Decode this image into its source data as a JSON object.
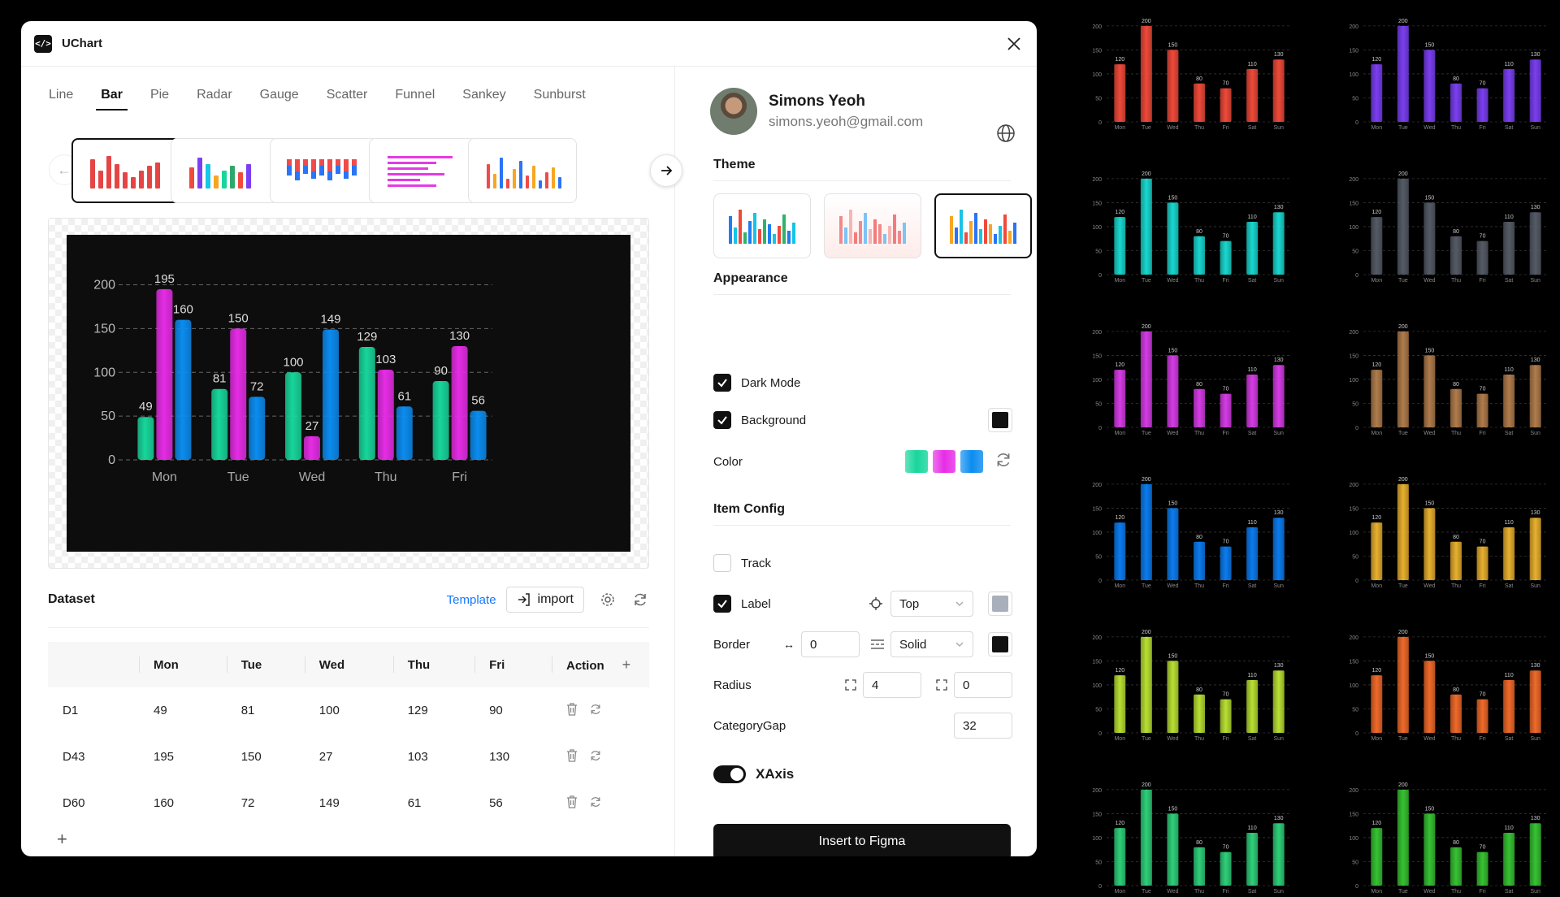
{
  "app": {
    "title": "UChart"
  },
  "tabs": [
    "Line",
    "Bar",
    "Pie",
    "Radar",
    "Gauge",
    "Scatter",
    "Funnel",
    "Sankey",
    "Sunburst"
  ],
  "active_tab": "Bar",
  "chart_data": {
    "type": "bar",
    "categories": [
      "Mon",
      "Tue",
      "Wed",
      "Thu",
      "Fri"
    ],
    "series": [
      {
        "name": "D1",
        "values": [
          49,
          81,
          100,
          129,
          90
        ],
        "color": "#17d69b"
      },
      {
        "name": "D43",
        "values": [
          195,
          150,
          27,
          103,
          130
        ],
        "color": "#e62ce6"
      },
      {
        "name": "D60",
        "values": [
          160,
          72,
          149,
          61,
          56
        ],
        "color": "#0b8cf0"
      }
    ],
    "yticks": [
      0,
      50,
      100,
      150,
      200
    ],
    "ylim": [
      0,
      220
    ],
    "grid": true,
    "labels": "top",
    "background": "#0d0d0d"
  },
  "dataset": {
    "title": "Dataset",
    "template_label": "Template",
    "import_label": "import",
    "columns": [
      "",
      "Mon",
      "Tue",
      "Wed",
      "Thu",
      "Fri",
      "Action"
    ],
    "rows": [
      {
        "name": "D1",
        "values": [
          "49",
          "81",
          "100",
          "129",
          "90"
        ]
      },
      {
        "name": "D43",
        "values": [
          "195",
          "150",
          "27",
          "103",
          "130"
        ]
      },
      {
        "name": "D60",
        "values": [
          "160",
          "72",
          "149",
          "61",
          "56"
        ]
      }
    ]
  },
  "profile": {
    "name": "Simons Yeoh",
    "email": "simons.yeoh@gmail.com"
  },
  "theme": {
    "title": "Theme"
  },
  "appearance": {
    "title": "Appearance",
    "dark_mode": "Dark Mode",
    "background": "Background",
    "color": "Color",
    "palette": [
      "#17d69b",
      "#e62ce6",
      "#0b8cf0"
    ]
  },
  "item_config": {
    "title": "Item Config",
    "track": "Track",
    "label": "Label",
    "label_position": "Top",
    "border": "Border",
    "border_width": "0",
    "border_style": "Solid",
    "radius": "Radius",
    "radius_a": "4",
    "radius_b": "0",
    "category_gap": "CategoryGap",
    "category_gap_value": "32"
  },
  "xaxis": {
    "label": "XAxis",
    "enabled": true
  },
  "cta": "Insert to Figma",
  "gallery": {
    "categories": [
      "Mon",
      "Tue",
      "Wed",
      "Thu",
      "Fri",
      "Sat",
      "Sun"
    ],
    "values": [
      120,
      200,
      150,
      80,
      70,
      110,
      130
    ],
    "yticks": [
      0,
      50,
      100,
      150,
      200
    ],
    "colors": [
      "#ef4a3a",
      "#7b3ff2",
      "#19d8d0",
      "#555b66",
      "#d63ce6",
      "#b07c4c",
      "#0b7cf0",
      "#e8b02e",
      "#b9e033",
      "#f06a2a",
      "#2fd07a",
      "#37c233"
    ]
  }
}
